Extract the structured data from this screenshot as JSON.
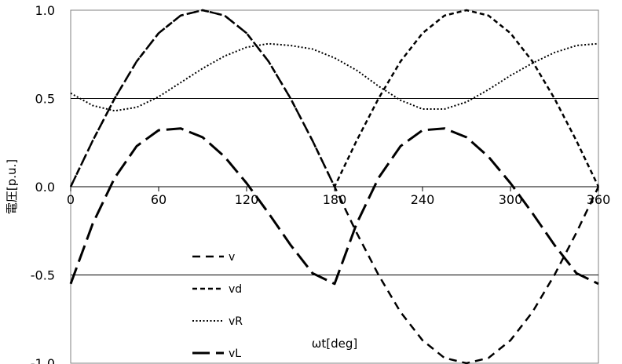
{
  "chart_data": {
    "type": "line",
    "xlabel": "ωt[deg]",
    "ylabel": "電圧[p.u.]",
    "xlim": [
      0,
      360
    ],
    "ylim": [
      -1.0,
      1.0
    ],
    "x_ticks": [
      "0",
      "60",
      "120",
      "180",
      "240",
      "300",
      "360"
    ],
    "y_ticks": [
      "1.0",
      "0.5",
      "0.0",
      "-0.5",
      "-1.0"
    ],
    "grid": "horizontal",
    "legend_position": "bottom-left inside",
    "x": [
      0,
      15,
      30,
      45,
      60,
      75,
      90,
      105,
      120,
      135,
      150,
      165,
      180,
      195,
      210,
      225,
      240,
      255,
      270,
      285,
      300,
      315,
      330,
      345,
      360
    ],
    "series": [
      {
        "name": "v",
        "style": "medium-dash",
        "values": [
          0.0,
          0.26,
          0.5,
          0.71,
          0.87,
          0.97,
          1.0,
          0.97,
          0.87,
          0.71,
          0.5,
          0.26,
          0.0,
          -0.26,
          -0.5,
          -0.71,
          -0.87,
          -0.97,
          -1.0,
          -0.97,
          -0.87,
          -0.71,
          -0.5,
          -0.26,
          0.0
        ]
      },
      {
        "name": "vd",
        "style": "short-dash",
        "values": [
          0.0,
          0.26,
          0.5,
          0.71,
          0.87,
          0.97,
          1.0,
          0.97,
          0.87,
          0.71,
          0.5,
          0.26,
          0.0,
          0.26,
          0.5,
          0.71,
          0.87,
          0.97,
          1.0,
          0.97,
          0.87,
          0.71,
          0.5,
          0.26,
          0.0
        ]
      },
      {
        "name": "vR",
        "style": "dotted",
        "values": [
          0.53,
          0.46,
          0.43,
          0.45,
          0.51,
          0.59,
          0.67,
          0.74,
          0.79,
          0.81,
          0.8,
          0.78,
          0.73,
          0.66,
          0.57,
          0.49,
          0.44,
          0.44,
          0.48,
          0.55,
          0.63,
          0.7,
          0.76,
          0.8,
          0.81
        ]
      },
      {
        "name": "vL",
        "style": "long-dash",
        "values": [
          -0.55,
          -0.21,
          0.05,
          0.23,
          0.32,
          0.33,
          0.28,
          0.17,
          0.02,
          -0.15,
          -0.33,
          -0.49,
          -0.55,
          -0.21,
          0.05,
          0.23,
          0.32,
          0.33,
          0.28,
          0.17,
          0.02,
          -0.15,
          -0.33,
          -0.49,
          -0.55
        ]
      }
    ]
  }
}
